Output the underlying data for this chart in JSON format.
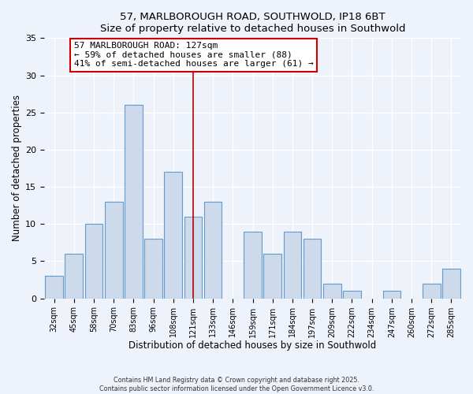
{
  "title": "57, MARLBOROUGH ROAD, SOUTHWOLD, IP18 6BT",
  "subtitle": "Size of property relative to detached houses in Southwold",
  "xlabel": "Distribution of detached houses by size in Southwold",
  "ylabel": "Number of detached properties",
  "bins": [
    "32sqm",
    "45sqm",
    "58sqm",
    "70sqm",
    "83sqm",
    "96sqm",
    "108sqm",
    "121sqm",
    "133sqm",
    "146sqm",
    "159sqm",
    "171sqm",
    "184sqm",
    "197sqm",
    "209sqm",
    "222sqm",
    "234sqm",
    "247sqm",
    "260sqm",
    "272sqm",
    "285sqm"
  ],
  "values": [
    3,
    6,
    10,
    13,
    26,
    8,
    17,
    11,
    13,
    0,
    9,
    6,
    9,
    8,
    2,
    1,
    0,
    1,
    0,
    2,
    4
  ],
  "bar_color": "#ccdaeb",
  "bar_edge_color": "#6699cc",
  "vline_index": 7,
  "vline_color": "#bb0000",
  "annotation_title": "57 MARLBOROUGH ROAD: 127sqm",
  "annotation_line1": "← 59% of detached houses are smaller (88)",
  "annotation_line2": "41% of semi-detached houses are larger (61) →",
  "annotation_box_color": "#ffffff",
  "annotation_box_edge": "#cc0000",
  "ylim": [
    0,
    35
  ],
  "yticks": [
    0,
    5,
    10,
    15,
    20,
    25,
    30,
    35
  ],
  "bg_color": "#eef2fa",
  "footer_line1": "Contains HM Land Registry data © Crown copyright and database right 2025.",
  "footer_line2": "Contains public sector information licensed under the Open Government Licence v3.0."
}
